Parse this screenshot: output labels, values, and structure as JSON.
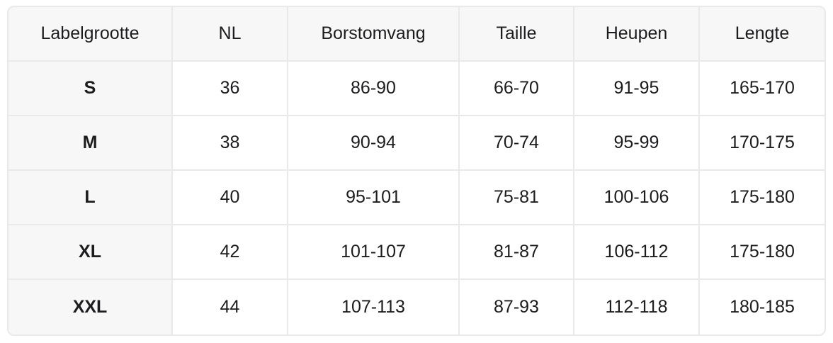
{
  "table": {
    "columns": [
      {
        "key": "labelgrootte",
        "label": "Labelgrootte"
      },
      {
        "key": "nl",
        "label": "NL"
      },
      {
        "key": "borstomvang",
        "label": "Borstomvang"
      },
      {
        "key": "taille",
        "label": "Taille"
      },
      {
        "key": "heupen",
        "label": "Heupen"
      },
      {
        "key": "lengte",
        "label": "Lengte"
      }
    ],
    "rows": [
      [
        "S",
        "36",
        "86-90",
        "66-70",
        "91-95",
        "165-170"
      ],
      [
        "M",
        "38",
        "90-94",
        "70-74",
        "95-99",
        "170-175"
      ],
      [
        "L",
        "40",
        "95-101",
        "75-81",
        "100-106",
        "175-180"
      ],
      [
        "XL",
        "42",
        "101-107",
        "81-87",
        "106-112",
        "175-180"
      ],
      [
        "XXL",
        "44",
        "107-113",
        "87-93",
        "112-118",
        "180-185"
      ]
    ]
  },
  "colors": {
    "header_background": "#f7f7f8",
    "first_column_background": "#f7f7f8",
    "cell_background": "#ffffff",
    "border": "#e9e9eb",
    "text": "#1c1c1e"
  }
}
